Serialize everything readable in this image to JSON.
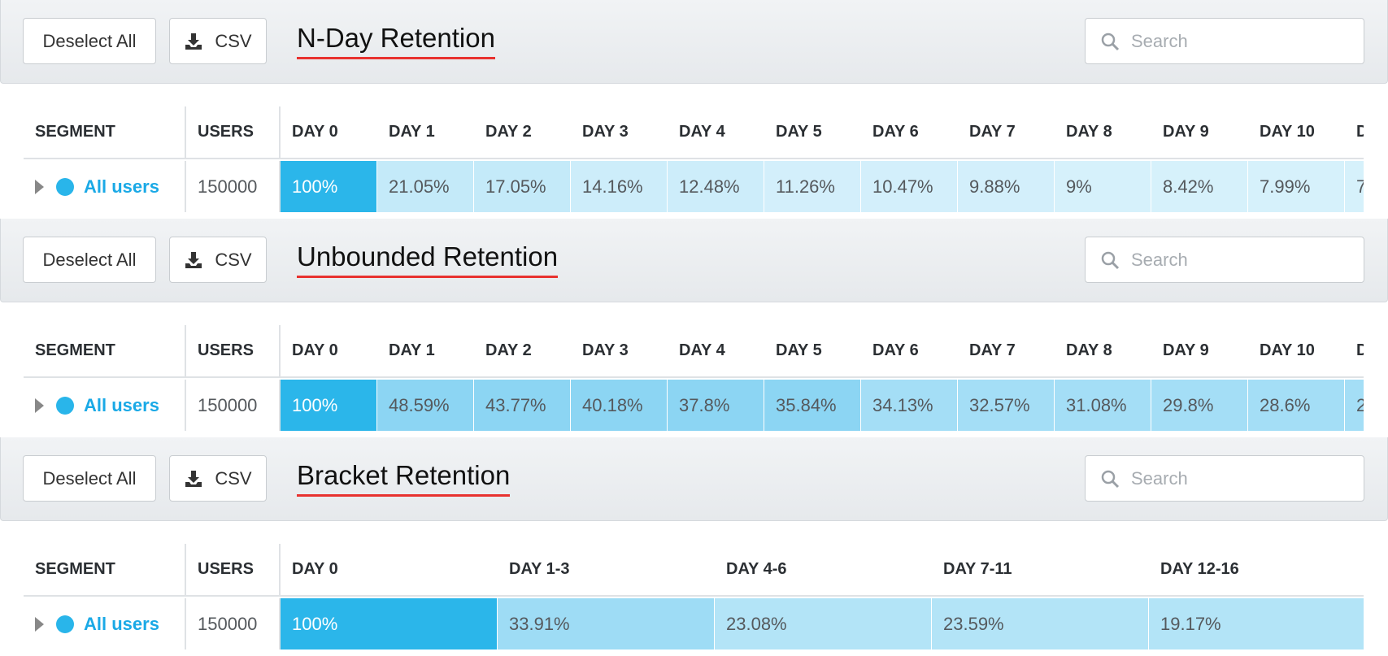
{
  "panels": [
    {
      "toolbar": {
        "deselect": "Deselect All",
        "csv": "CSV",
        "title": "N-Day Retention",
        "search_placeholder": "Search"
      },
      "table": {
        "headers": [
          "SEGMENT",
          "USERS",
          "DAY 0",
          "DAY 1",
          "DAY 2",
          "DAY 3",
          "DAY 4",
          "DAY 5",
          "DAY 6",
          "DAY 7",
          "DAY 8",
          "DAY 9",
          "DAY 10",
          "D"
        ],
        "rows": [
          {
            "segment": "All users",
            "users": "150000",
            "cells": [
              "100%",
              "21.05%",
              "17.05%",
              "14.16%",
              "12.48%",
              "11.26%",
              "10.47%",
              "9.88%",
              "9%",
              "8.42%",
              "7.99%",
              "7"
            ],
            "cell_colors": [
              "#2bb6ea",
              "#c4eaf9",
              "#c4eaf9",
              "#cdedfa",
              "#cdedfa",
              "#d3effb",
              "#d3effb",
              "#d3effb",
              "#d6f1fb",
              "#d6f1fb",
              "#d6f1fb",
              "#d6f1fb"
            ]
          }
        ]
      }
    },
    {
      "toolbar": {
        "deselect": "Deselect All",
        "csv": "CSV",
        "title": "Unbounded Retention",
        "search_placeholder": "Search"
      },
      "table": {
        "headers": [
          "SEGMENT",
          "USERS",
          "DAY 0",
          "DAY 1",
          "DAY 2",
          "DAY 3",
          "DAY 4",
          "DAY 5",
          "DAY 6",
          "DAY 7",
          "DAY 8",
          "DAY 9",
          "DAY 10",
          "D"
        ],
        "rows": [
          {
            "segment": "All users",
            "users": "150000",
            "cells": [
              "100%",
              "48.59%",
              "43.77%",
              "40.18%",
              "37.8%",
              "35.84%",
              "34.13%",
              "32.57%",
              "31.08%",
              "29.8%",
              "28.6%",
              "2"
            ],
            "cell_colors": [
              "#2bb6ea",
              "#8cd5f3",
              "#8cd5f3",
              "#8cd5f3",
              "#8cd5f3",
              "#8cd5f3",
              "#a4def6",
              "#a4def6",
              "#a4def6",
              "#a4def6",
              "#a4def6",
              "#a4def6"
            ]
          }
        ]
      }
    },
    {
      "toolbar": {
        "deselect": "Deselect All",
        "csv": "CSV",
        "title": "Bracket Retention",
        "search_placeholder": "Search"
      },
      "table": {
        "headers": [
          "SEGMENT",
          "USERS",
          "DAY 0",
          "DAY 1-3",
          "DAY 4-6",
          "DAY 7-11",
          "DAY 12-16"
        ],
        "rows": [
          {
            "segment": "All users",
            "users": "150000",
            "cells": [
              "100%",
              "33.91%",
              "23.08%",
              "23.59%",
              "19.17%"
            ],
            "cell_colors": [
              "#2bb6ea",
              "#9edcf5",
              "#b3e4f7",
              "#b3e4f7",
              "#b3e4f7"
            ]
          }
        ]
      }
    }
  ]
}
